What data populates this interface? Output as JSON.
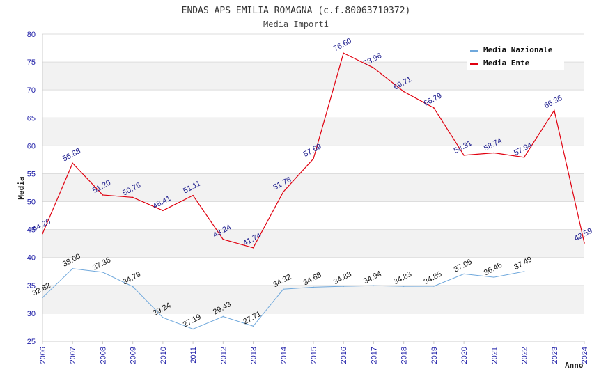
{
  "chart_data": {
    "type": "line",
    "title": "ENDAS APS EMILIA ROMAGNA (c.f.80063710372)",
    "subtitle": "Media Importi",
    "ylabel": "Media",
    "xlabel": "Anno",
    "ylim": [
      25,
      80
    ],
    "yticks": [
      "25",
      "30",
      "35",
      "40",
      "45",
      "50",
      "55",
      "60",
      "65",
      "70",
      "75",
      "80"
    ],
    "categories": [
      "2006",
      "2007",
      "2008",
      "2009",
      "2010",
      "2011",
      "2012",
      "2013",
      "2014",
      "2015",
      "2016",
      "2017",
      "2018",
      "2019",
      "2020",
      "2021",
      "2022",
      "2023",
      "2024"
    ],
    "legend_position": "top-right",
    "series": [
      {
        "name": "Media Nazionale",
        "color": "#6fa8dc",
        "values": [
          32.82,
          38.0,
          37.36,
          34.79,
          29.24,
          27.19,
          29.43,
          27.71,
          34.32,
          34.68,
          34.83,
          34.94,
          34.83,
          34.85,
          37.05,
          36.46,
          37.49,
          null,
          null
        ],
        "labels": [
          "32.82",
          "38.00",
          "37.36",
          "34.79",
          "29.24",
          "27.19",
          "29.43",
          "27.71",
          "34.32",
          "34.68",
          "34.83",
          "34.94",
          "34.83",
          "34.85",
          "37.05",
          "36.46",
          "37.49",
          null,
          null
        ]
      },
      {
        "name": "Media Ente",
        "color": "#e0000f",
        "values": [
          44.26,
          56.88,
          51.2,
          50.76,
          48.41,
          51.11,
          43.24,
          41.74,
          51.76,
          57.69,
          76.6,
          73.96,
          69.71,
          66.79,
          58.31,
          58.74,
          57.94,
          66.36,
          42.59
        ],
        "labels": [
          "44.26",
          "56.88",
          "51.20",
          "50.76",
          "48.41",
          "51.11",
          "43.24",
          "41.74",
          "51.76",
          "57.69",
          "76.60",
          "73.96",
          "69.71",
          "66.79",
          "58.31",
          "58.74",
          "57.94",
          "66.36",
          "42.59"
        ]
      }
    ]
  }
}
